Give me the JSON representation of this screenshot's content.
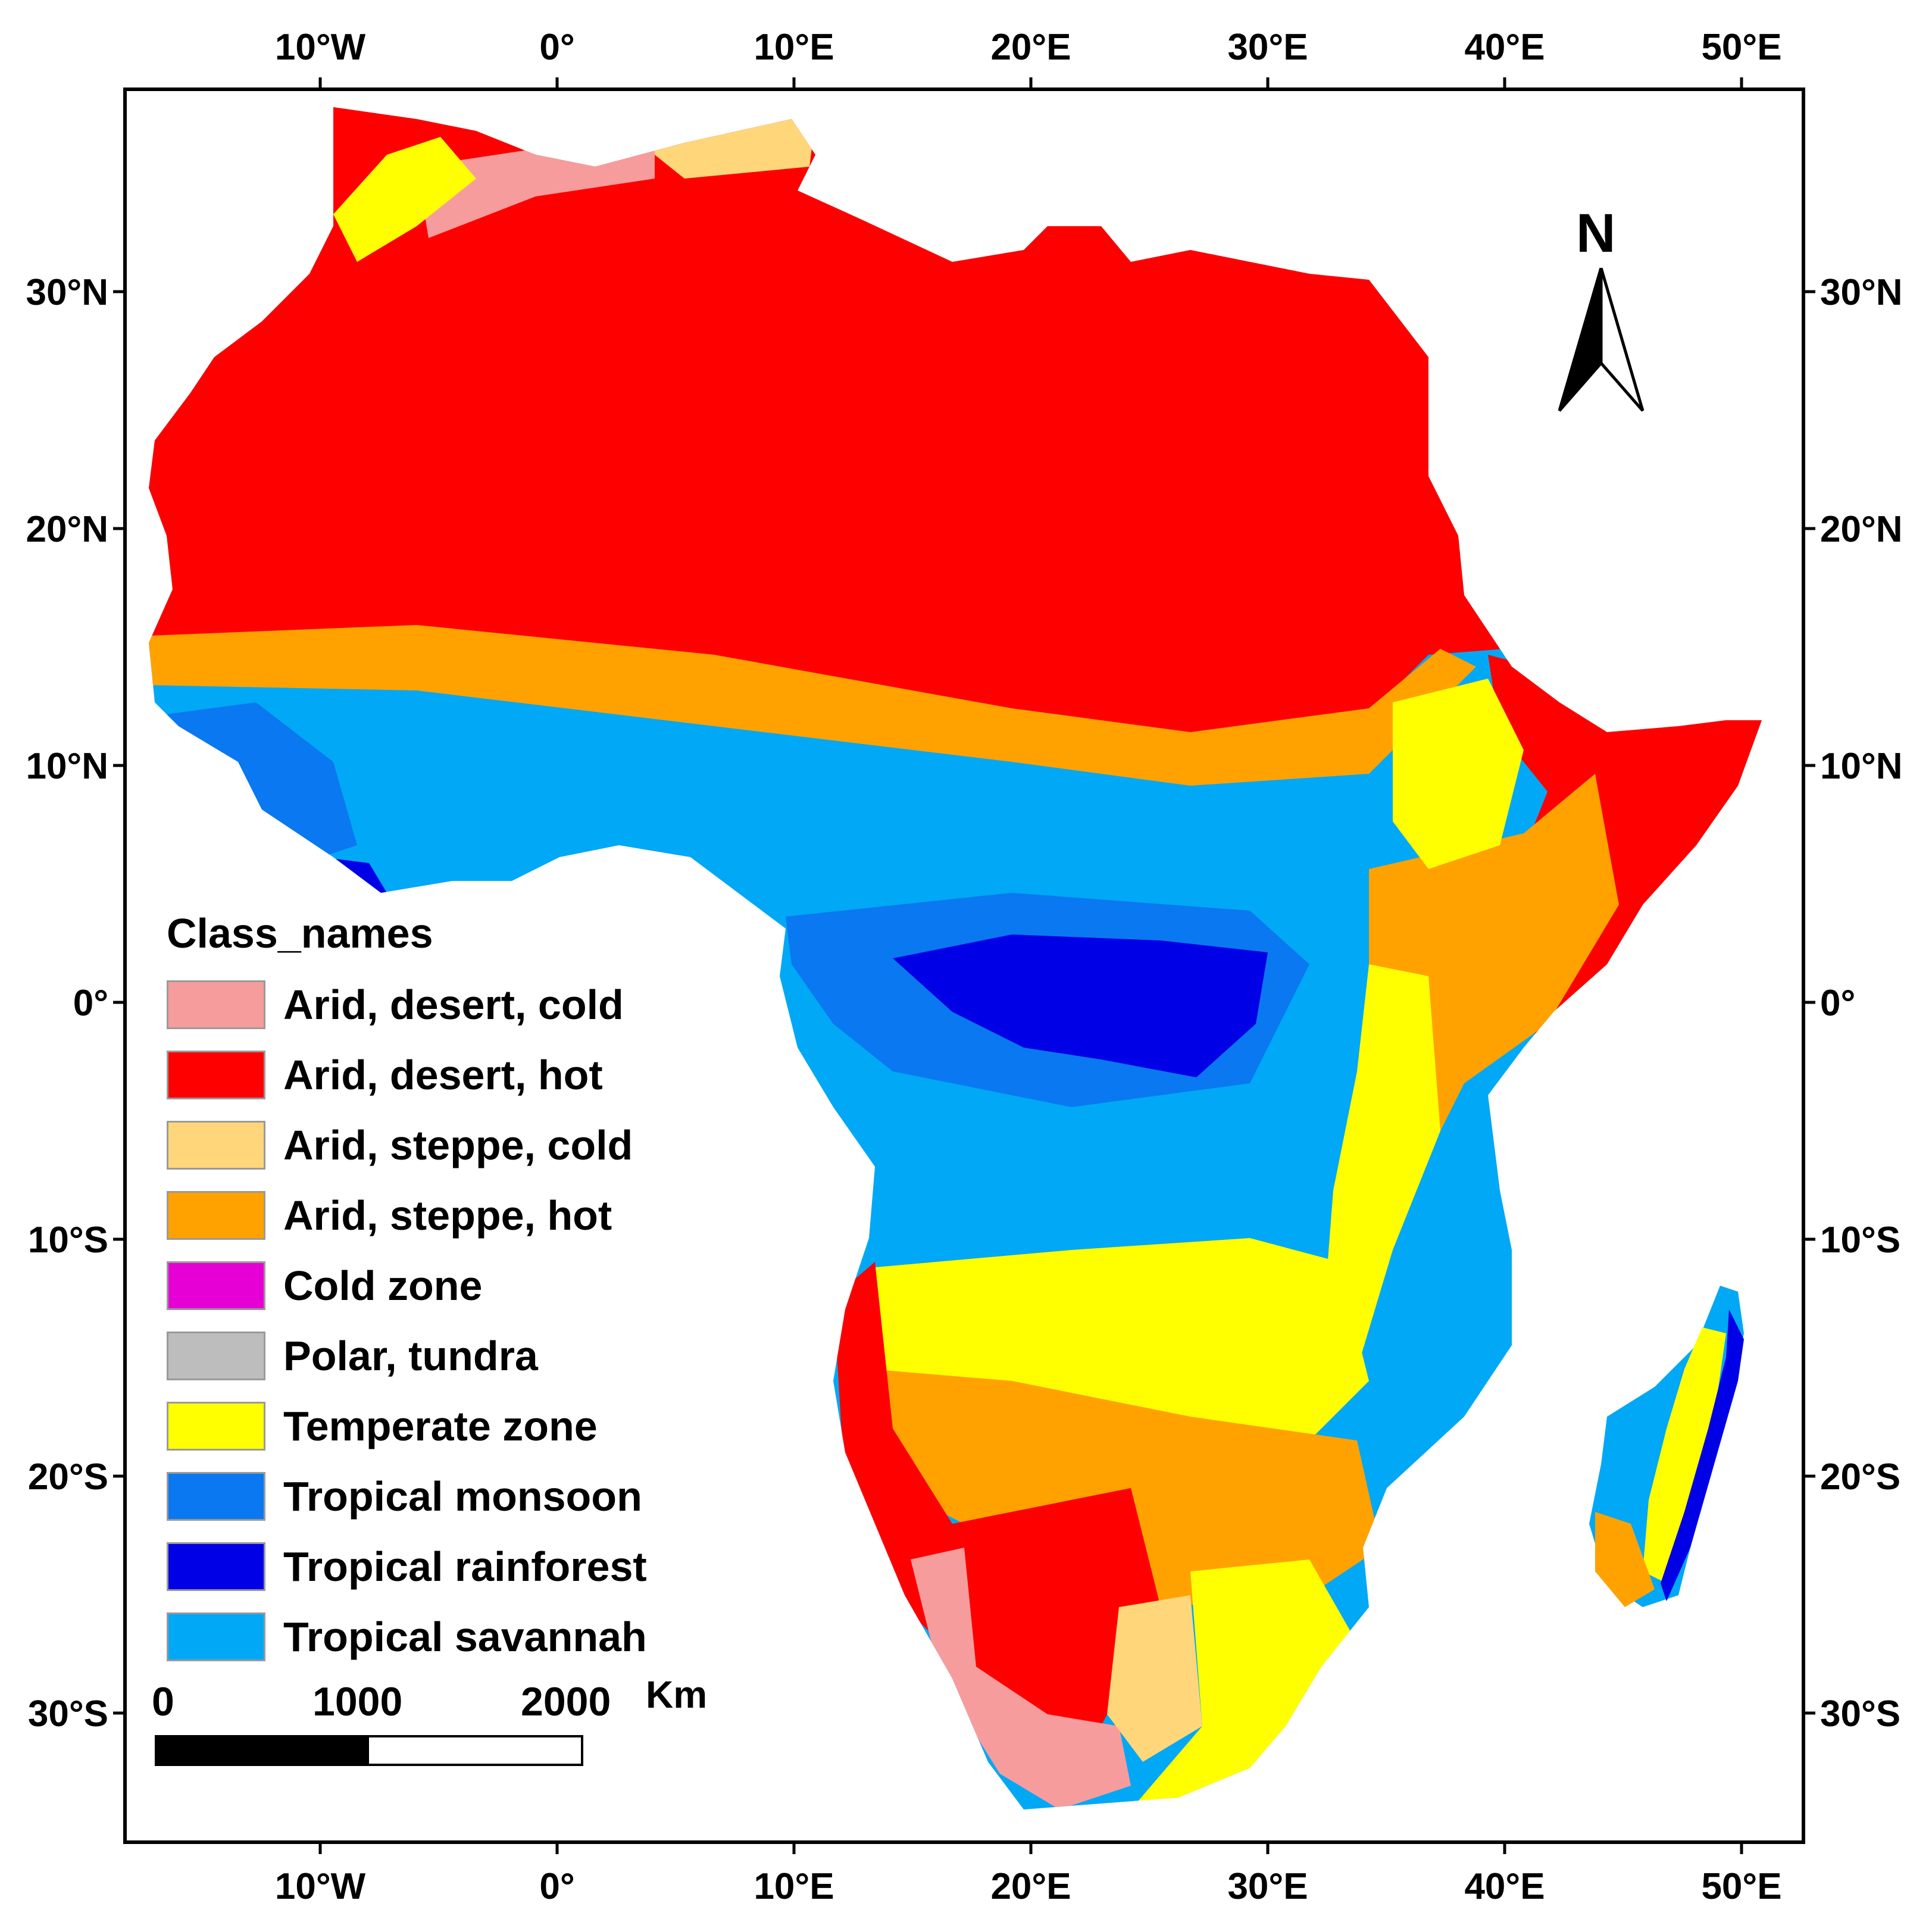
{
  "map": {
    "top_ticks": [
      "10°W",
      "0°",
      "10°E",
      "20°E",
      "30°E",
      "40°E",
      "50°E"
    ],
    "bottom_ticks": [
      "10°W",
      "0°",
      "10°E",
      "20°E",
      "30°E",
      "40°E",
      "50°E"
    ],
    "left_ticks": [
      "30°N",
      "20°N",
      "10°N",
      "0°",
      "10°S",
      "20°S",
      "30°S"
    ],
    "right_ticks": [
      "30°N",
      "20°N",
      "10°N",
      "0°",
      "10°S",
      "20°S",
      "30°S"
    ]
  },
  "legend": {
    "title": "Class_names",
    "items": [
      {
        "label": "Arid, desert, cold",
        "color": "#f79c9c"
      },
      {
        "label": "Arid, desert, hot",
        "color": "#ff0000"
      },
      {
        "label": "Arid, steppe, cold",
        "color": "#ffd77a"
      },
      {
        "label": "Arid, steppe, hot",
        "color": "#ffa200"
      },
      {
        "label": "Cold zone",
        "color": "#e600d6"
      },
      {
        "label": "Polar, tundra",
        "color": "#bdbdbd"
      },
      {
        "label": "Temperate zone",
        "color": "#ffff00"
      },
      {
        "label": "Tropical monsoon",
        "color": "#0a78f0"
      },
      {
        "label": "Tropical rainforest",
        "color": "#0000e6"
      },
      {
        "label": "Tropical savannah",
        "color": "#00a8f5"
      }
    ]
  },
  "scale_bar": {
    "labels": [
      "0",
      "1000",
      "2000"
    ],
    "unit": "Km"
  },
  "north_arrow": {
    "letter": "N"
  }
}
